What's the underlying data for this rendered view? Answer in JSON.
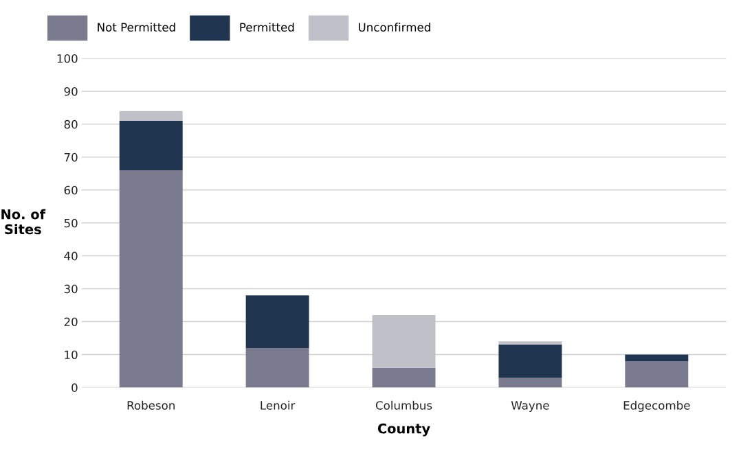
{
  "chart_data": {
    "type": "bar",
    "stacked": true,
    "xlabel": "County",
    "ylabel": "No. of\nSites",
    "categories": [
      "Robeson",
      "Lenoir",
      "Columbus",
      "Wayne",
      "Edgecombe"
    ],
    "series": [
      {
        "name": "Not Permitted",
        "color": "#7a7b8f",
        "values": [
          66,
          12,
          6,
          3,
          8
        ]
      },
      {
        "name": "Permitted",
        "color": "#1f3550",
        "values": [
          15,
          16,
          0,
          10,
          2
        ]
      },
      {
        "name": "Unconfirmed",
        "color": "#c0c0c8",
        "values": [
          3,
          0,
          16,
          1,
          0
        ]
      }
    ],
    "ylim": [
      0,
      100
    ],
    "yticks": [
      0,
      10,
      20,
      30,
      40,
      50,
      60,
      70,
      80,
      90,
      100
    ],
    "grid": "y",
    "legend": "top left"
  }
}
